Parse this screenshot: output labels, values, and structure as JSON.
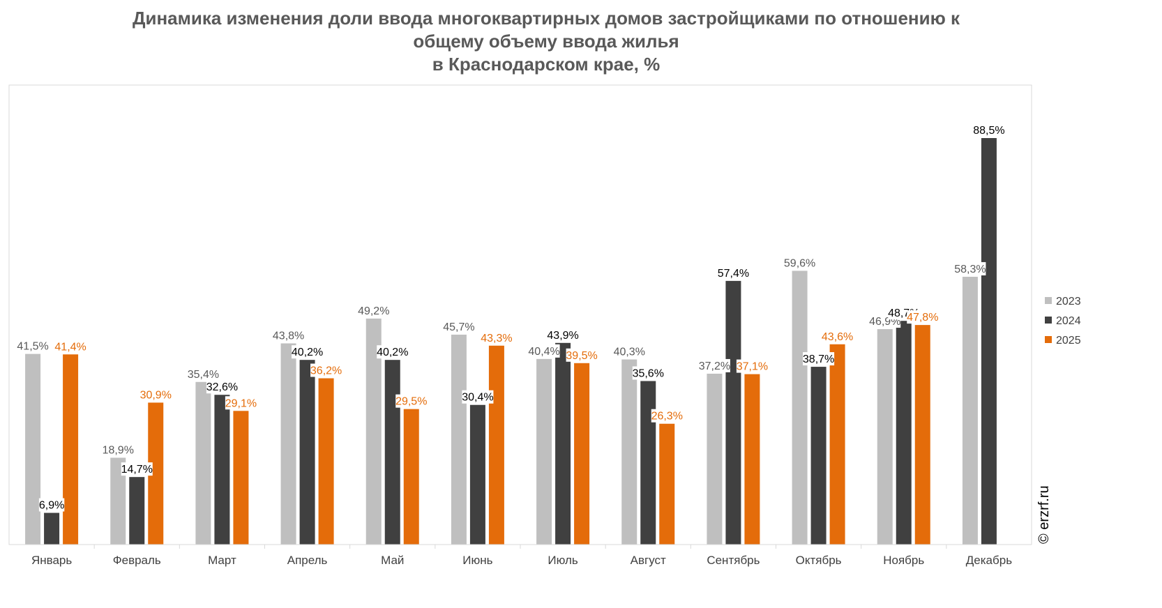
{
  "chart_data": {
    "type": "bar",
    "title": "Динамика изменения доли ввода многоквартирных домов застройщиками по отношению к общему объему ввода жилья в Краснодарском крае, %",
    "title_lines": [
      "Динамика изменения доли ввода многоквартирных домов застройщиками по отношению к",
      "общему объему ввода жилья",
      "в Краснодарском крае, %"
    ],
    "categories": [
      "Январь",
      "Февраль",
      "Март",
      "Апрель",
      "Май",
      "Июнь",
      "Июль",
      "Август",
      "Сентябрь",
      "Октябрь",
      "Ноябрь",
      "Декабрь"
    ],
    "series": [
      {
        "name": "2023",
        "color": "#bfbfbf",
        "label_color": "#595959",
        "values": [
          41.5,
          18.9,
          35.4,
          43.8,
          49.2,
          45.7,
          40.4,
          40.3,
          37.2,
          59.6,
          46.9,
          58.3
        ],
        "labels": [
          "41,5%",
          "18,9%",
          "35,4%",
          "43,8%",
          "49,2%",
          "45,7%",
          "40,4%",
          "40,3%",
          "37,2%",
          "59,6%",
          "46,9%",
          "58,3%"
        ]
      },
      {
        "name": "2024",
        "color": "#404040",
        "label_color": "#000000",
        "values": [
          6.9,
          14.7,
          32.6,
          40.2,
          40.2,
          30.4,
          43.9,
          35.6,
          57.4,
          38.7,
          48.7,
          88.5
        ],
        "labels": [
          "6,9%",
          "14,7%",
          "32,6%",
          "40,2%",
          "40,2%",
          "30,4%",
          "43,9%",
          "35,6%",
          "57,4%",
          "38,7%",
          "48,7%",
          "88,5%"
        ]
      },
      {
        "name": "2025",
        "color": "#e46c0a",
        "label_color": "#e46c0a",
        "values": [
          41.4,
          30.9,
          29.1,
          36.2,
          29.5,
          43.3,
          39.5,
          26.3,
          37.1,
          43.6,
          47.8,
          null
        ],
        "labels": [
          "41,4%",
          "30,9%",
          "29,1%",
          "36,2%",
          "29,5%",
          "43,3%",
          "39,5%",
          "26,3%",
          "37,1%",
          "43,6%",
          "47,8%",
          null
        ]
      }
    ],
    "xlabel": "",
    "ylabel": "",
    "ylim": [
      0,
      100
    ],
    "grid": false,
    "legend_position": "right"
  },
  "watermark": "© erzrf.ru"
}
